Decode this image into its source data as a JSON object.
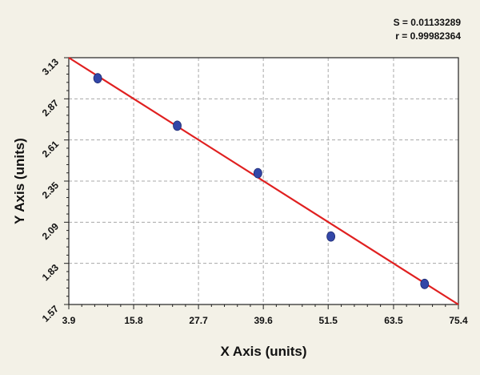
{
  "stats": {
    "s_text": "S = 0.01133289",
    "r_text": "r = 0.99982364"
  },
  "chart_data": {
    "type": "scatter",
    "title": "",
    "xlabel": "X Axis (units)",
    "ylabel": "Y Axis (units)",
    "xlim": [
      3.9,
      75.4
    ],
    "ylim": [
      1.57,
      3.13
    ],
    "xticks": [
      "3.9",
      "15.8",
      "27.7",
      "39.6",
      "51.5",
      "63.5",
      "75.4"
    ],
    "xtick_values": [
      3.9,
      15.8,
      27.7,
      39.6,
      51.5,
      63.5,
      75.4
    ],
    "yticks": [
      "1.57",
      "1.83",
      "2.09",
      "2.35",
      "2.61",
      "2.87",
      "3.13"
    ],
    "ytick_values": [
      1.57,
      1.83,
      2.09,
      2.35,
      2.61,
      2.87,
      3.13
    ],
    "grid": true,
    "series": [
      {
        "x": [
          9.2,
          23.8,
          38.6,
          52.0,
          69.2
        ],
        "y": [
          3.0,
          2.7,
          2.4,
          2.0,
          1.7
        ],
        "color": "#3347a8"
      }
    ],
    "fit_line": {
      "x": [
        3.9,
        75.4
      ],
      "y": [
        3.13,
        1.57
      ],
      "color": "#e02020"
    }
  }
}
